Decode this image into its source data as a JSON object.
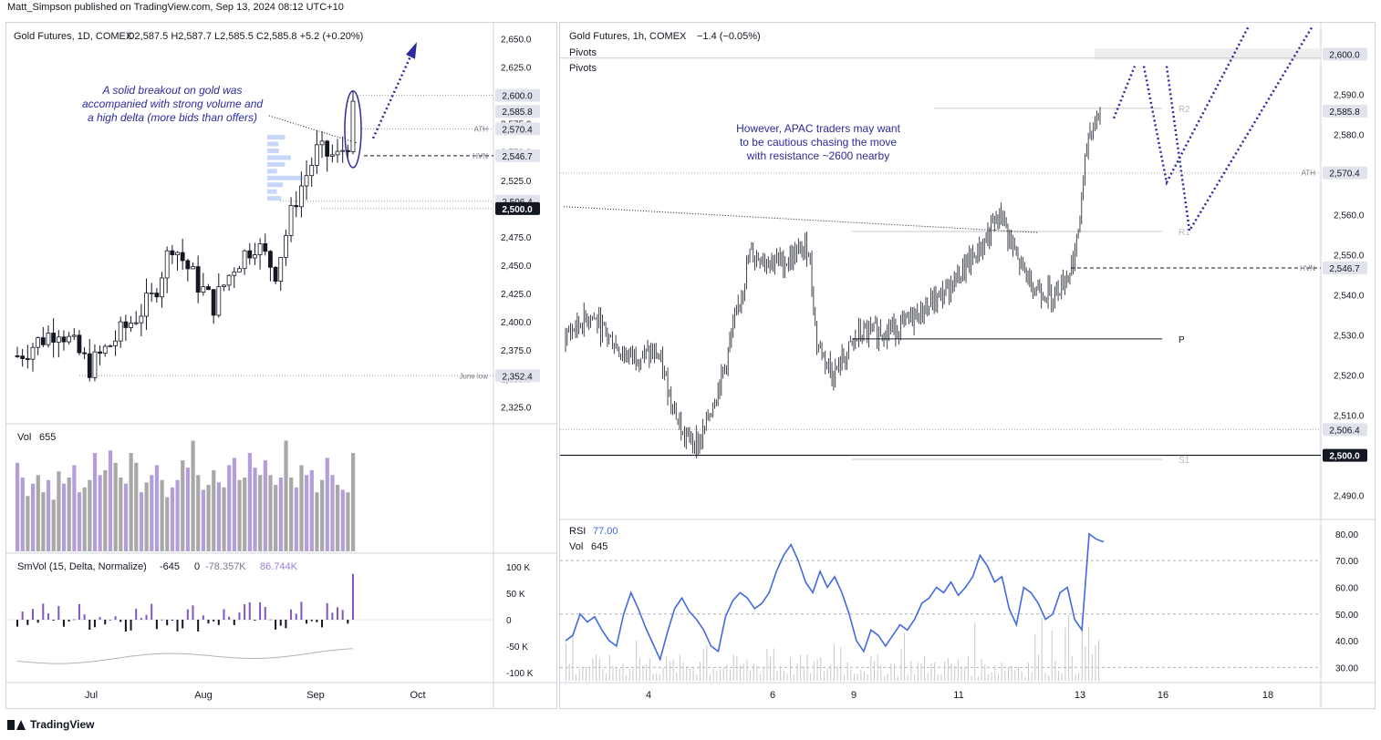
{
  "publisher": "Matt_Simpson published on TradingView.com, Sep 13, 2024 08:12 UTC+10",
  "footer": {
    "brand": "TradingView",
    "logo_icon": "tradingview-logo-icon"
  },
  "colors": {
    "up_bar": "#b39ddb",
    "down_bar": "#a8a8a8",
    "annotation": "#2b2b9e",
    "rsi": "#4169e1",
    "price_tag": "#131722"
  },
  "chart_data": [
    {
      "type": "candlestick",
      "id": "daily",
      "title": "Gold Futures, 1D, COMEX",
      "ohlc_text": "O2,587.5  H2,587.7  L2,585.5  C2,585.8  +5.2 (+0.20%)",
      "ylim": [
        2310,
        2660
      ],
      "y_ticks": [
        "2,650.0",
        "2,625.0",
        "2,600.0",
        "2,575.0",
        "2,550.0",
        "2,525.0",
        "2,500.0",
        "2,475.0",
        "2,450.0",
        "2,425.0",
        "2,400.0",
        "2,375.0",
        "2,350.0",
        "2,325.0"
      ],
      "x_ticks": [
        "Jul",
        "Aug",
        "Sep",
        "Oct"
      ],
      "price_tags": [
        {
          "label": "2,600.0",
          "value": 2600,
          "style": "light"
        },
        {
          "label": "2,585.8",
          "value": 2585.8,
          "style": "light"
        },
        {
          "label": "2,570.4",
          "value": 2570.4,
          "style": "light"
        },
        {
          "label": "2,546.7",
          "value": 2546.7,
          "style": "light"
        },
        {
          "label": "2,506.4",
          "value": 2506.4,
          "style": "light"
        },
        {
          "label": "2,500.0",
          "value": 2500,
          "style": "dark"
        },
        {
          "label": "2,352.4",
          "value": 2352.4,
          "style": "light"
        }
      ],
      "levels": [
        {
          "name": "ATH",
          "value": 2570.4
        },
        {
          "name": "HVN",
          "value": 2546.7
        },
        {
          "name": "June low",
          "value": 2352.4
        }
      ],
      "annotation": [
        "A solid breakout on gold was",
        "accompanied with strong volume and",
        "a high delta (more bids than offers)"
      ]
    },
    {
      "type": "bar",
      "id": "daily-volume",
      "title": "Vol",
      "value_text": "655",
      "values": [
        72,
        60,
        45,
        55,
        62,
        48,
        58,
        42,
        65,
        55,
        60,
        70,
        48,
        52,
        58,
        80,
        62,
        66,
        82,
        72,
        60,
        55,
        80,
        72,
        48,
        56,
        62,
        70,
        58,
        44,
        52,
        58,
        74,
        68,
        90,
        62,
        50,
        54,
        66,
        56,
        52,
        70,
        76,
        58,
        60,
        80,
        68,
        62,
        74,
        62,
        54,
        60,
        90,
        60,
        52,
        70,
        62,
        66,
        48,
        58,
        76,
        62,
        54,
        50,
        48,
        80
      ]
    },
    {
      "type": "bar",
      "id": "smvol-delta",
      "title": "SmVol (15, Delta, Normalize)",
      "values_text": [
        "-645",
        "0",
        "-78.357K",
        "86.744K"
      ],
      "y_ticks": [
        "100 K",
        "50 K",
        "0",
        "-50 K",
        "-100 K"
      ],
      "ylim": [
        -110000,
        110000
      ]
    },
    {
      "type": "candlestick",
      "id": "hourly",
      "title": "Gold Futures, 1h, COMEX",
      "change_text": "−1.4 (−0.05%)",
      "legend": [
        "Pivots",
        "Pivots"
      ],
      "ylim": [
        2484,
        2606
      ],
      "y_ticks": [
        "2,590.0",
        "2,580.0",
        "2,570.0",
        "2,560.0",
        "2,550.0",
        "2,540.0",
        "2,530.0",
        "2,520.0",
        "2,510.0",
        "2,500.0",
        "2,490.0"
      ],
      "x_ticks": [
        "4",
        "6",
        "9",
        "11",
        "13",
        "16",
        "18"
      ],
      "price_tags": [
        {
          "label": "2,600.0",
          "value": 2600,
          "style": "light"
        },
        {
          "label": "2,585.8",
          "value": 2585.8,
          "style": "light"
        },
        {
          "label": "2,570.4",
          "value": 2570.4,
          "style": "light"
        },
        {
          "label": "2,546.7",
          "value": 2546.7,
          "style": "light"
        },
        {
          "label": "2,506.4",
          "value": 2506.4,
          "style": "light"
        },
        {
          "label": "2,500.0",
          "value": 2500,
          "style": "dark"
        }
      ],
      "levels": [
        {
          "name": "ATH",
          "value": 2570.4
        },
        {
          "name": "HVN",
          "value": 2546.7
        }
      ],
      "pivots": [
        {
          "name": "R2",
          "value": 2586.5
        },
        {
          "name": "R1",
          "value": 2555.8
        },
        {
          "name": "P",
          "value": 2529
        },
        {
          "name": "S1",
          "value": 2499
        }
      ],
      "annotation": [
        "However, APAC traders may want",
        "to be cautious chasing the move",
        "with resistance ~2600 nearby"
      ]
    },
    {
      "type": "line",
      "id": "rsi",
      "title": "RSI",
      "value_text": "77.00",
      "vol_label": "Vol",
      "vol_text": "645",
      "ylim": [
        25,
        82
      ],
      "y_ticks": [
        "80.00",
        "70.00",
        "60.00",
        "50.00",
        "40.00",
        "30.00"
      ],
      "values": [
        40,
        42,
        50,
        47,
        49,
        44,
        40,
        38,
        50,
        58,
        52,
        45,
        39,
        33,
        43,
        52,
        56,
        51,
        48,
        44,
        38,
        36,
        49,
        55,
        58,
        56,
        52,
        54,
        58,
        66,
        72,
        76,
        70,
        62,
        58,
        66,
        60,
        64,
        58,
        50,
        40,
        36,
        44,
        42,
        38,
        42,
        46,
        44,
        48,
        54,
        56,
        60,
        58,
        62,
        57,
        60,
        64,
        72,
        68,
        62,
        64,
        52,
        46,
        60,
        58,
        54,
        48,
        50,
        58,
        60,
        48,
        44,
        80,
        78,
        77
      ]
    }
  ]
}
